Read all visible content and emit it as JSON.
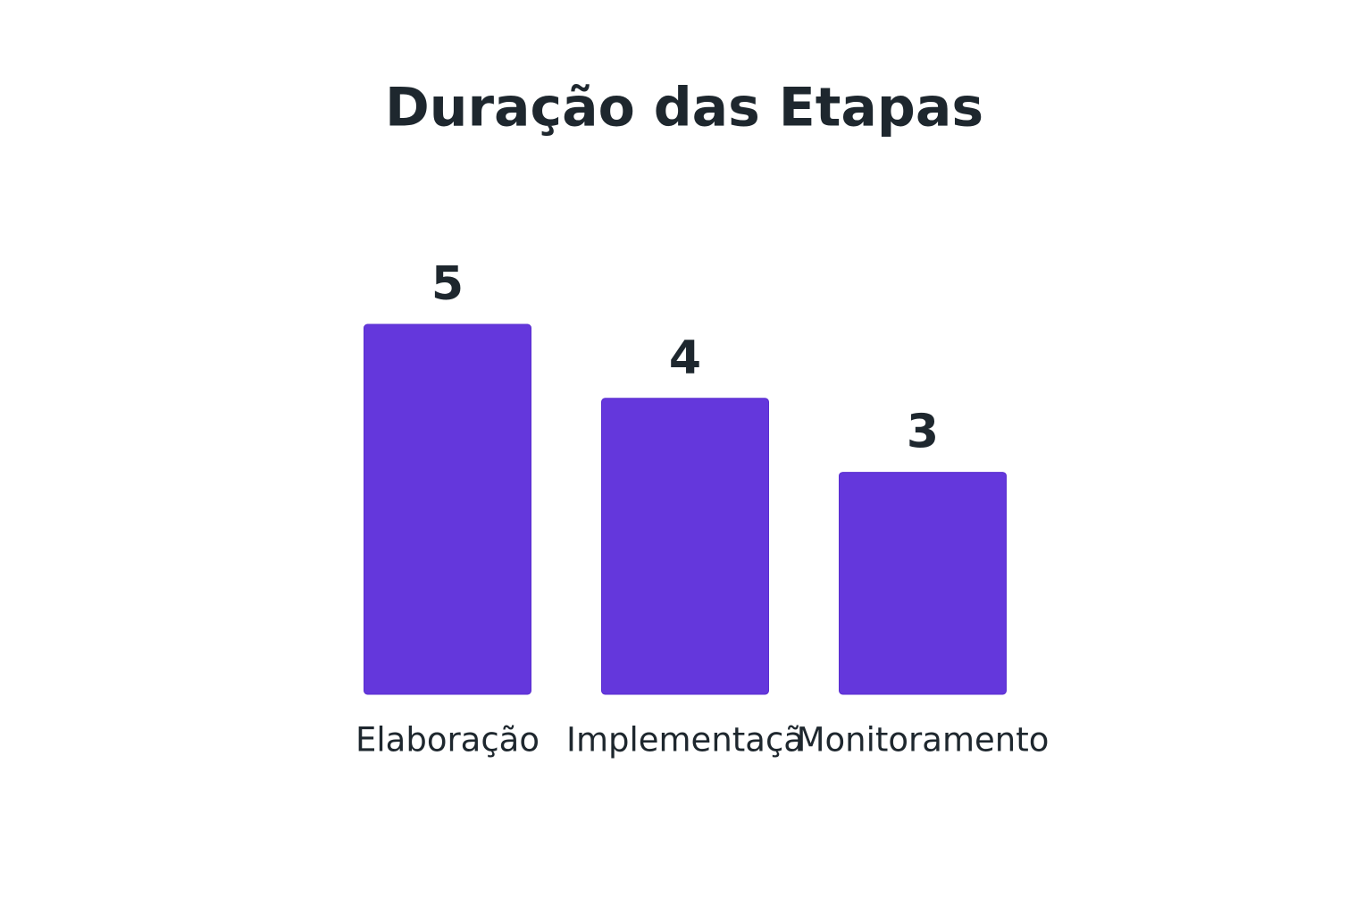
{
  "chart_data": {
    "type": "bar",
    "title": "Duração das Etapas",
    "categories": [
      "Elaboração",
      "Implementaçã",
      "Monitoramento"
    ],
    "values": [
      5,
      4,
      3
    ],
    "color": "#6437dc"
  }
}
